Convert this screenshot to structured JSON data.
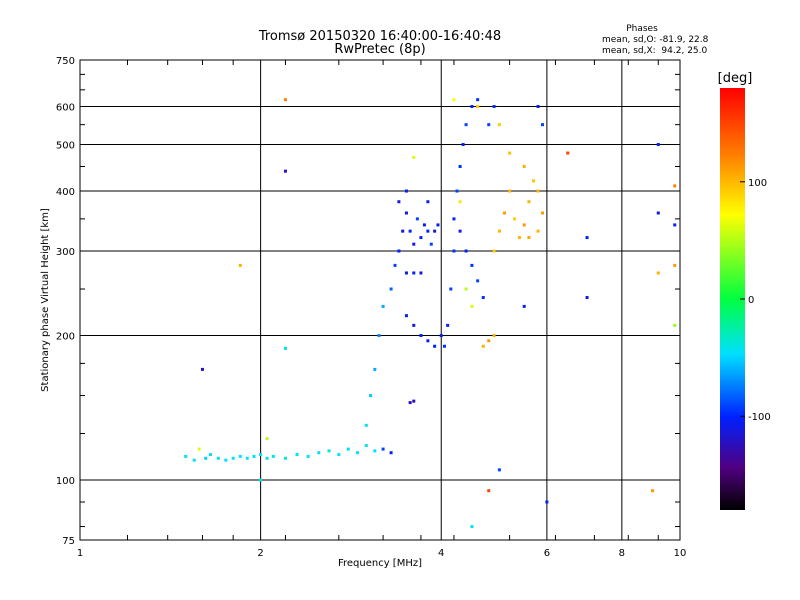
{
  "chart_data": {
    "type": "scatter",
    "title": "Tromsø 20150320 16:40:00-16:40:48",
    "subtitle": "RwPretec (8p)",
    "xlabel": "Frequency [MHz]",
    "ylabel": "Stationary phase Virtual Height [km]",
    "x_scale": "log",
    "y_scale": "log",
    "xlim": [
      1,
      10
    ],
    "ylim": [
      75,
      750
    ],
    "x_ticks": [
      "1",
      "2",
      "4",
      "6",
      "8",
      "10"
    ],
    "y_ticks": [
      "75",
      "100",
      "200",
      "300",
      "400",
      "500",
      "600",
      "750"
    ],
    "grid": true,
    "phase_info": {
      "heading": "Phases",
      "line_o": "mean, sd,O: -81.9, 22.8",
      "line_x": "mean, sd,X:  94.2, 25.0"
    },
    "colorbar": {
      "label": "[deg]",
      "range": [
        -180,
        180
      ],
      "ticks": [
        "100",
        "0",
        "-100"
      ]
    },
    "point_color_unit": "deg",
    "points": [
      {
        "x": 1.5,
        "y": 112,
        "phase": -45
      },
      {
        "x": 1.55,
        "y": 110,
        "phase": -40
      },
      {
        "x": 1.58,
        "y": 116,
        "phase": 60
      },
      {
        "x": 1.62,
        "y": 111,
        "phase": -50
      },
      {
        "x": 1.65,
        "y": 113,
        "phase": -45
      },
      {
        "x": 1.7,
        "y": 111,
        "phase": -40
      },
      {
        "x": 1.75,
        "y": 110,
        "phase": -45
      },
      {
        "x": 1.8,
        "y": 111,
        "phase": -40
      },
      {
        "x": 1.85,
        "y": 112,
        "phase": -45
      },
      {
        "x": 1.9,
        "y": 111,
        "phase": -40
      },
      {
        "x": 1.95,
        "y": 112,
        "phase": -42
      },
      {
        "x": 2.0,
        "y": 113,
        "phase": -45
      },
      {
        "x": 2.0,
        "y": 100,
        "phase": -40
      },
      {
        "x": 2.05,
        "y": 111,
        "phase": -40
      },
      {
        "x": 2.1,
        "y": 112,
        "phase": -45
      },
      {
        "x": 2.2,
        "y": 111,
        "phase": -40
      },
      {
        "x": 2.3,
        "y": 113,
        "phase": -45
      },
      {
        "x": 2.4,
        "y": 112,
        "phase": -42
      },
      {
        "x": 2.5,
        "y": 114,
        "phase": -45
      },
      {
        "x": 2.6,
        "y": 115,
        "phase": -40
      },
      {
        "x": 2.7,
        "y": 113,
        "phase": -45
      },
      {
        "x": 2.8,
        "y": 116,
        "phase": -40
      },
      {
        "x": 2.9,
        "y": 114,
        "phase": -45
      },
      {
        "x": 3.0,
        "y": 118,
        "phase": -40
      },
      {
        "x": 3.1,
        "y": 115,
        "phase": -45
      },
      {
        "x": 3.2,
        "y": 116,
        "phase": -90
      },
      {
        "x": 3.3,
        "y": 114,
        "phase": -100
      },
      {
        "x": 3.0,
        "y": 130,
        "phase": -40
      },
      {
        "x": 3.05,
        "y": 150,
        "phase": -50
      },
      {
        "x": 3.1,
        "y": 170,
        "phase": -60
      },
      {
        "x": 3.15,
        "y": 200,
        "phase": -70
      },
      {
        "x": 3.2,
        "y": 230,
        "phase": -60
      },
      {
        "x": 3.3,
        "y": 250,
        "phase": -80
      },
      {
        "x": 3.35,
        "y": 280,
        "phase": -90
      },
      {
        "x": 3.4,
        "y": 300,
        "phase": -100
      },
      {
        "x": 3.45,
        "y": 330,
        "phase": -110
      },
      {
        "x": 3.5,
        "y": 360,
        "phase": -110
      },
      {
        "x": 3.55,
        "y": 330,
        "phase": -100
      },
      {
        "x": 3.6,
        "y": 310,
        "phase": -110
      },
      {
        "x": 3.65,
        "y": 350,
        "phase": -90
      },
      {
        "x": 3.7,
        "y": 320,
        "phase": -100
      },
      {
        "x": 3.75,
        "y": 340,
        "phase": -110
      },
      {
        "x": 3.8,
        "y": 330,
        "phase": -100
      },
      {
        "x": 3.85,
        "y": 310,
        "phase": -90
      },
      {
        "x": 3.9,
        "y": 330,
        "phase": -110
      },
      {
        "x": 3.95,
        "y": 340,
        "phase": -100
      },
      {
        "x": 3.5,
        "y": 270,
        "phase": -110
      },
      {
        "x": 3.6,
        "y": 270,
        "phase": -100
      },
      {
        "x": 3.7,
        "y": 270,
        "phase": -110
      },
      {
        "x": 3.5,
        "y": 220,
        "phase": -100
      },
      {
        "x": 3.6,
        "y": 210,
        "phase": -110
      },
      {
        "x": 3.7,
        "y": 200,
        "phase": -100
      },
      {
        "x": 3.8,
        "y": 195,
        "phase": -105
      },
      {
        "x": 3.9,
        "y": 190,
        "phase": -100
      },
      {
        "x": 3.55,
        "y": 145,
        "phase": -120
      },
      {
        "x": 3.6,
        "y": 146,
        "phase": -125
      },
      {
        "x": 3.4,
        "y": 380,
        "phase": -110
      },
      {
        "x": 3.5,
        "y": 400,
        "phase": -105
      },
      {
        "x": 4.0,
        "y": 200,
        "phase": -100
      },
      {
        "x": 4.05,
        "y": 190,
        "phase": -95
      },
      {
        "x": 4.1,
        "y": 210,
        "phase": -100
      },
      {
        "x": 4.15,
        "y": 250,
        "phase": -90
      },
      {
        "x": 4.2,
        "y": 300,
        "phase": -95
      },
      {
        "x": 4.2,
        "y": 350,
        "phase": -100
      },
      {
        "x": 4.25,
        "y": 400,
        "phase": -90
      },
      {
        "x": 4.3,
        "y": 450,
        "phase": -95
      },
      {
        "x": 4.35,
        "y": 500,
        "phase": -100
      },
      {
        "x": 4.4,
        "y": 550,
        "phase": -90
      },
      {
        "x": 4.5,
        "y": 600,
        "phase": -100
      },
      {
        "x": 4.6,
        "y": 620,
        "phase": -95
      },
      {
        "x": 4.3,
        "y": 330,
        "phase": -110
      },
      {
        "x": 4.4,
        "y": 300,
        "phase": -100
      },
      {
        "x": 4.5,
        "y": 280,
        "phase": -95
      },
      {
        "x": 4.6,
        "y": 260,
        "phase": -90
      },
      {
        "x": 4.7,
        "y": 240,
        "phase": -95
      },
      {
        "x": 4.8,
        "y": 550,
        "phase": -90
      },
      {
        "x": 4.9,
        "y": 600,
        "phase": -95
      },
      {
        "x": 4.4,
        "y": 250,
        "phase": 50
      },
      {
        "x": 4.5,
        "y": 230,
        "phase": 60
      },
      {
        "x": 4.3,
        "y": 380,
        "phase": 80
      },
      {
        "x": 4.2,
        "y": 620,
        "phase": 70
      },
      {
        "x": 4.6,
        "y": 600,
        "phase": 90
      },
      {
        "x": 4.7,
        "y": 190,
        "phase": 100
      },
      {
        "x": 4.8,
        "y": 195,
        "phase": 110
      },
      {
        "x": 4.9,
        "y": 200,
        "phase": 100
      },
      {
        "x": 4.9,
        "y": 300,
        "phase": 90
      },
      {
        "x": 5.0,
        "y": 330,
        "phase": 100
      },
      {
        "x": 5.1,
        "y": 360,
        "phase": 110
      },
      {
        "x": 5.2,
        "y": 400,
        "phase": 100
      },
      {
        "x": 5.3,
        "y": 350,
        "phase": 90
      },
      {
        "x": 5.4,
        "y": 320,
        "phase": 100
      },
      {
        "x": 5.5,
        "y": 340,
        "phase": 110
      },
      {
        "x": 5.6,
        "y": 380,
        "phase": 100
      },
      {
        "x": 5.7,
        "y": 420,
        "phase": 95
      },
      {
        "x": 5.8,
        "y": 400,
        "phase": 100
      },
      {
        "x": 5.9,
        "y": 360,
        "phase": 110
      },
      {
        "x": 5.6,
        "y": 320,
        "phase": 105
      },
      {
        "x": 5.8,
        "y": 330,
        "phase": 100
      },
      {
        "x": 5.0,
        "y": 550,
        "phase": 90
      },
      {
        "x": 5.2,
        "y": 480,
        "phase": 95
      },
      {
        "x": 5.5,
        "y": 450,
        "phase": 100
      },
      {
        "x": 5.8,
        "y": 600,
        "phase": -100
      },
      {
        "x": 5.9,
        "y": 550,
        "phase": -90
      },
      {
        "x": 5.5,
        "y": 230,
        "phase": -100
      },
      {
        "x": 5.0,
        "y": 105,
        "phase": -90
      },
      {
        "x": 6.0,
        "y": 90,
        "phase": -100
      },
      {
        "x": 4.5,
        "y": 80,
        "phase": -40
      },
      {
        "x": 4.8,
        "y": 95,
        "phase": 150
      },
      {
        "x": 6.5,
        "y": 480,
        "phase": 150
      },
      {
        "x": 7.0,
        "y": 320,
        "phase": -100
      },
      {
        "x": 7.0,
        "y": 240,
        "phase": -110
      },
      {
        "x": 9.0,
        "y": 95,
        "phase": 110
      },
      {
        "x": 9.2,
        "y": 500,
        "phase": -100
      },
      {
        "x": 9.2,
        "y": 360,
        "phase": -110
      },
      {
        "x": 9.2,
        "y": 270,
        "phase": 100
      },
      {
        "x": 9.8,
        "y": 410,
        "phase": 120
      },
      {
        "x": 9.8,
        "y": 340,
        "phase": -100
      },
      {
        "x": 9.8,
        "y": 280,
        "phase": 110
      },
      {
        "x": 9.8,
        "y": 210,
        "phase": 40
      },
      {
        "x": 2.2,
        "y": 620,
        "phase": 120
      },
      {
        "x": 2.2,
        "y": 440,
        "phase": -120
      },
      {
        "x": 1.85,
        "y": 280,
        "phase": 100
      },
      {
        "x": 1.6,
        "y": 170,
        "phase": -120
      },
      {
        "x": 2.2,
        "y": 188,
        "phase": -40
      },
      {
        "x": 2.05,
        "y": 122,
        "phase": 50
      },
      {
        "x": 3.6,
        "y": 470,
        "phase": 60
      },
      {
        "x": 3.8,
        "y": 380,
        "phase": -100
      }
    ]
  }
}
